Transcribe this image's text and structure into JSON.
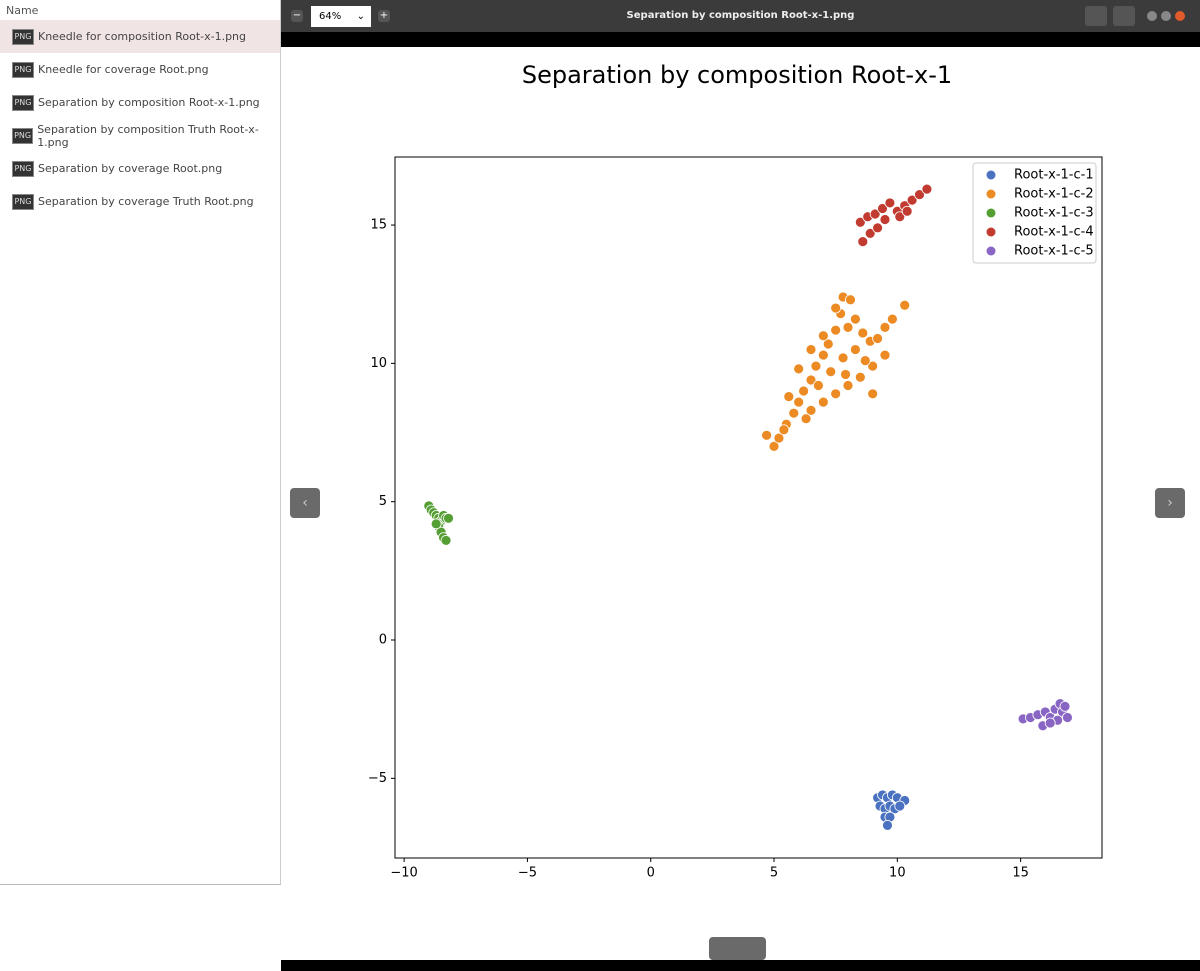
{
  "file_list": {
    "header": "Name",
    "files": [
      {
        "icon": "PNG",
        "name": "Kneedle for composition Root-x-1.png"
      },
      {
        "icon": "PNG",
        "name": "Kneedle for coverage Root.png"
      },
      {
        "icon": "PNG",
        "name": "Separation by composition Root-x-1.png"
      },
      {
        "icon": "PNG",
        "name": "Separation by composition Truth Root-x-1.png"
      },
      {
        "icon": "PNG",
        "name": "Separation by coverage Root.png"
      },
      {
        "icon": "PNG",
        "name": "Separation by coverage Truth Root.png"
      }
    ]
  },
  "viewer": {
    "title": "Separation by composition Root-x-1.png",
    "zoom": "64%"
  },
  "chart_data": {
    "type": "scatter",
    "title": "Separation by composition Root-x-1",
    "xlim": [
      -10.37,
      18.3
    ],
    "ylim": [
      -7.88,
      17.46
    ],
    "xticks": [
      {
        "value": -10,
        "label": "−10"
      },
      {
        "value": -5,
        "label": "−5"
      },
      0,
      5,
      10,
      15
    ],
    "yticks": [
      {
        "value": -5,
        "label": "−5"
      },
      0,
      5,
      10,
      15
    ],
    "legend": "upper right",
    "series": [
      {
        "name": "Root-x-1-c-1",
        "color": "#4a72c0",
        "x": [
          9.2,
          9.4,
          9.6,
          9.8,
          10.0,
          10.3,
          9.3,
          9.5,
          9.7,
          9.9,
          9.5,
          9.7,
          9.6,
          10.1
        ],
        "y": [
          -5.7,
          -5.6,
          -5.7,
          -5.6,
          -5.7,
          -5.8,
          -6.0,
          -6.1,
          -6.0,
          -6.1,
          -6.4,
          -6.4,
          -6.7,
          -6.0
        ]
      },
      {
        "name": "Root-x-1-c-2",
        "color": "#ec8a24",
        "x": [
          4.7,
          5.0,
          5.2,
          5.5,
          5.8,
          6.0,
          6.2,
          6.5,
          6.7,
          7.0,
          7.2,
          7.5,
          7.7,
          7.8,
          8.1,
          8.3,
          8.6,
          8.9,
          9.2,
          9.5,
          9.8,
          10.3,
          6.5,
          7.0,
          7.5,
          8.0,
          8.5,
          9.0,
          9.5,
          6.8,
          7.3,
          7.8,
          8.3,
          7.0,
          6.5,
          8.0,
          5.6,
          6.0,
          7.5,
          9.0,
          8.7,
          7.9,
          6.3,
          5.4
        ],
        "y": [
          7.4,
          7.0,
          7.3,
          7.8,
          8.2,
          8.6,
          9.0,
          9.4,
          9.9,
          10.3,
          10.7,
          11.2,
          11.8,
          12.4,
          12.3,
          11.6,
          11.1,
          10.8,
          10.9,
          11.3,
          11.6,
          12.1,
          8.3,
          8.6,
          8.9,
          9.2,
          9.5,
          9.9,
          10.3,
          9.2,
          9.7,
          10.2,
          10.5,
          11.0,
          10.5,
          11.3,
          8.8,
          9.8,
          12.0,
          8.9,
          10.1,
          9.6,
          8.0,
          7.6
        ]
      },
      {
        "name": "Root-x-1-c-3",
        "color": "#559e33",
        "x": [
          -9.0,
          -8.9,
          -8.8,
          -8.7,
          -8.6,
          -8.5,
          -8.4,
          -8.3,
          -8.6,
          -8.5,
          -8.4,
          -8.3,
          -8.7,
          -8.2
        ],
        "y": [
          4.85,
          4.7,
          4.6,
          4.5,
          4.4,
          4.3,
          4.5,
          4.4,
          4.1,
          3.9,
          3.7,
          3.6,
          4.2,
          4.4
        ]
      },
      {
        "name": "Root-x-1-c-4",
        "color": "#c23b31",
        "x": [
          8.5,
          8.8,
          9.1,
          9.4,
          9.7,
          10.0,
          10.3,
          10.6,
          10.9,
          11.2,
          8.6,
          8.9,
          9.2,
          9.5,
          10.1,
          10.4
        ],
        "y": [
          15.1,
          15.3,
          15.4,
          15.6,
          15.8,
          15.5,
          15.7,
          15.9,
          16.1,
          16.3,
          14.4,
          14.7,
          14.9,
          15.2,
          15.3,
          15.5
        ]
      },
      {
        "name": "Root-x-1-c-5",
        "color": "#8a66c4",
        "x": [
          15.1,
          15.4,
          15.7,
          15.9,
          16.0,
          16.2,
          16.4,
          16.6,
          16.7,
          16.9,
          16.5,
          16.8,
          16.2
        ],
        "y": [
          -2.85,
          -2.8,
          -2.7,
          -3.1,
          -2.6,
          -2.8,
          -2.5,
          -2.3,
          -2.6,
          -2.8,
          -2.9,
          -2.4,
          -3.0
        ]
      }
    ]
  }
}
